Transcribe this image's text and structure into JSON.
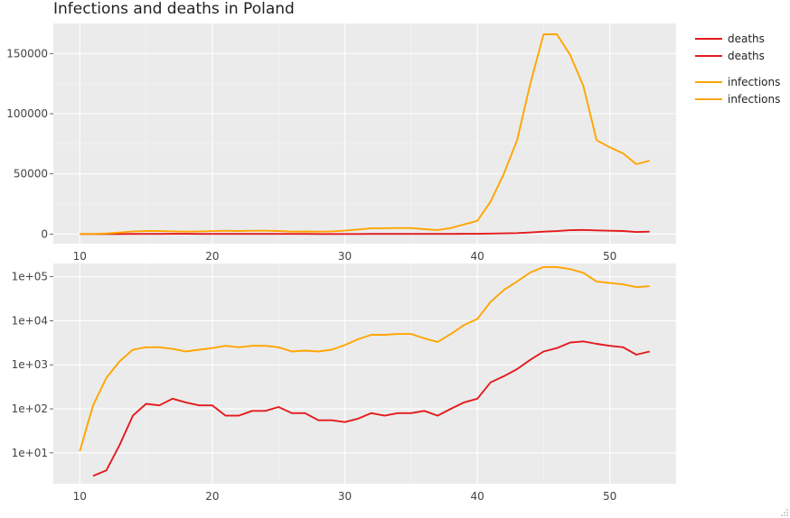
{
  "chart_data": [
    {
      "type": "line",
      "title": "Infections and deaths in Poland",
      "xlabel": "",
      "ylabel": "",
      "xlim": [
        8,
        55
      ],
      "ylim": [
        -8000,
        175000
      ],
      "yscale": "linear",
      "xticks": [
        10,
        20,
        30,
        40,
        50
      ],
      "yticks": [
        0,
        50000,
        100000,
        150000
      ],
      "ytick_labels": [
        "0",
        "50000",
        "100000",
        "150000"
      ],
      "grid": true,
      "background": "#ebebeb",
      "series": [
        {
          "name": "deaths",
          "color": "#e41a1c",
          "x": [
            10,
            11,
            12,
            13,
            14,
            15,
            16,
            17,
            18,
            19,
            20,
            21,
            22,
            23,
            24,
            25,
            26,
            27,
            28,
            29,
            30,
            31,
            32,
            33,
            34,
            35,
            36,
            37,
            38,
            39,
            40,
            41,
            42,
            43,
            44,
            45,
            46,
            47,
            48,
            49,
            50,
            51,
            52,
            53
          ],
          "y": [
            0,
            3,
            4,
            15,
            70,
            130,
            120,
            170,
            140,
            120,
            120,
            70,
            70,
            90,
            90,
            110,
            80,
            80,
            55,
            55,
            50,
            60,
            80,
            70,
            80,
            80,
            90,
            70,
            100,
            140,
            170,
            400,
            550,
            800,
            1300,
            2000,
            2400,
            3200,
            3400,
            3000,
            2700,
            2500,
            1700,
            2000
          ]
        },
        {
          "name": "infections",
          "color": "#ffa500",
          "x": [
            10,
            11,
            12,
            13,
            14,
            15,
            16,
            17,
            18,
            19,
            20,
            21,
            22,
            23,
            24,
            25,
            26,
            27,
            28,
            29,
            30,
            31,
            32,
            33,
            34,
            35,
            36,
            37,
            38,
            39,
            40,
            41,
            42,
            43,
            44,
            45,
            46,
            47,
            48,
            49,
            50,
            51,
            52,
            53
          ],
          "y": [
            11,
            120,
            500,
            1200,
            2200,
            2500,
            2500,
            2300,
            2000,
            2200,
            2400,
            2700,
            2500,
            2700,
            2700,
            2500,
            2000,
            2100,
            2000,
            2200,
            2800,
            3800,
            4800,
            4800,
            5000,
            5000,
            4000,
            3300,
            5000,
            8000,
            11000,
            27000,
            50000,
            78000,
            125000,
            166000,
            166000,
            149000,
            123000,
            78000,
            72000,
            67000,
            58000,
            61000
          ]
        }
      ]
    },
    {
      "type": "line",
      "title": "",
      "xlabel": "",
      "ylabel": "",
      "xlim": [
        8,
        55
      ],
      "ylim": [
        0.3,
        5.3
      ],
      "yscale": "log",
      "xticks": [
        10,
        20,
        30,
        40,
        50
      ],
      "yticks": [
        1,
        2,
        3,
        4,
        5
      ],
      "ytick_labels": [
        "1e+01",
        "1e+02",
        "1e+03",
        "1e+04",
        "1e+05"
      ],
      "grid": true,
      "background": "#ebebeb",
      "series": [
        {
          "name": "deaths",
          "color": "#e41a1c",
          "x": [
            10,
            11,
            12,
            13,
            14,
            15,
            16,
            17,
            18,
            19,
            20,
            21,
            22,
            23,
            24,
            25,
            26,
            27,
            28,
            29,
            30,
            31,
            32,
            33,
            34,
            35,
            36,
            37,
            38,
            39,
            40,
            41,
            42,
            43,
            44,
            45,
            46,
            47,
            48,
            49,
            50,
            51,
            52,
            53
          ],
          "y": [
            0,
            3,
            4,
            15,
            70,
            130,
            120,
            170,
            140,
            120,
            120,
            70,
            70,
            90,
            90,
            110,
            80,
            80,
            55,
            55,
            50,
            60,
            80,
            70,
            80,
            80,
            90,
            70,
            100,
            140,
            170,
            400,
            550,
            800,
            1300,
            2000,
            2400,
            3200,
            3400,
            3000,
            2700,
            2500,
            1700,
            2000
          ]
        },
        {
          "name": "infections",
          "color": "#ffa500",
          "x": [
            10,
            11,
            12,
            13,
            14,
            15,
            16,
            17,
            18,
            19,
            20,
            21,
            22,
            23,
            24,
            25,
            26,
            27,
            28,
            29,
            30,
            31,
            32,
            33,
            34,
            35,
            36,
            37,
            38,
            39,
            40,
            41,
            42,
            43,
            44,
            45,
            46,
            47,
            48,
            49,
            50,
            51,
            52,
            53
          ],
          "y": [
            11,
            120,
            500,
            1200,
            2200,
            2500,
            2500,
            2300,
            2000,
            2200,
            2400,
            2700,
            2500,
            2700,
            2700,
            2500,
            2000,
            2100,
            2000,
            2200,
            2800,
            3800,
            4800,
            4800,
            5000,
            5000,
            4000,
            3300,
            5000,
            8000,
            11000,
            27000,
            50000,
            78000,
            125000,
            166000,
            166000,
            149000,
            123000,
            78000,
            72000,
            67000,
            58000,
            61000
          ]
        }
      ]
    }
  ],
  "legend": {
    "position": "top-right",
    "items": [
      {
        "label": "deaths",
        "color": "#e41a1c"
      },
      {
        "label": "deaths",
        "color": "#e41a1c"
      },
      {
        "label": "infections",
        "color": "#ffa500"
      },
      {
        "label": "infections",
        "color": "#ffa500"
      }
    ]
  }
}
